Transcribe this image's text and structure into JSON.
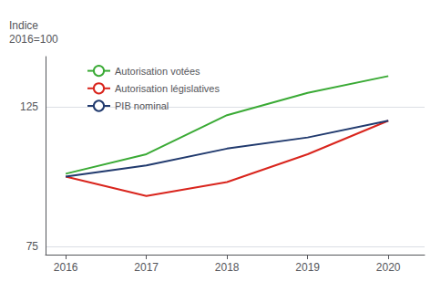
{
  "chart_data": {
    "type": "line",
    "ylabel": "Indice\n2016=100",
    "x": [
      2016,
      2017,
      2018,
      2019,
      2020
    ],
    "series": [
      {
        "name": "Autorisation votées",
        "color": "#3aaa35",
        "values": [
          101,
          108,
          122,
          130,
          136
        ]
      },
      {
        "name": "Autorisation législatives",
        "color": "#d9251d",
        "values": [
          100,
          93,
          98,
          108,
          120
        ]
      },
      {
        "name": "PIB nominal",
        "color": "#213a6e",
        "values": [
          100,
          104,
          110,
          114,
          120
        ]
      }
    ],
    "xlim": [
      2015.75,
      2020.45
    ],
    "xticks": [
      2016,
      2017,
      2018,
      2019,
      2020
    ],
    "ylim": [
      72,
      143
    ],
    "yticks": [
      75,
      125
    ],
    "grid": true,
    "legend": "upper left"
  }
}
